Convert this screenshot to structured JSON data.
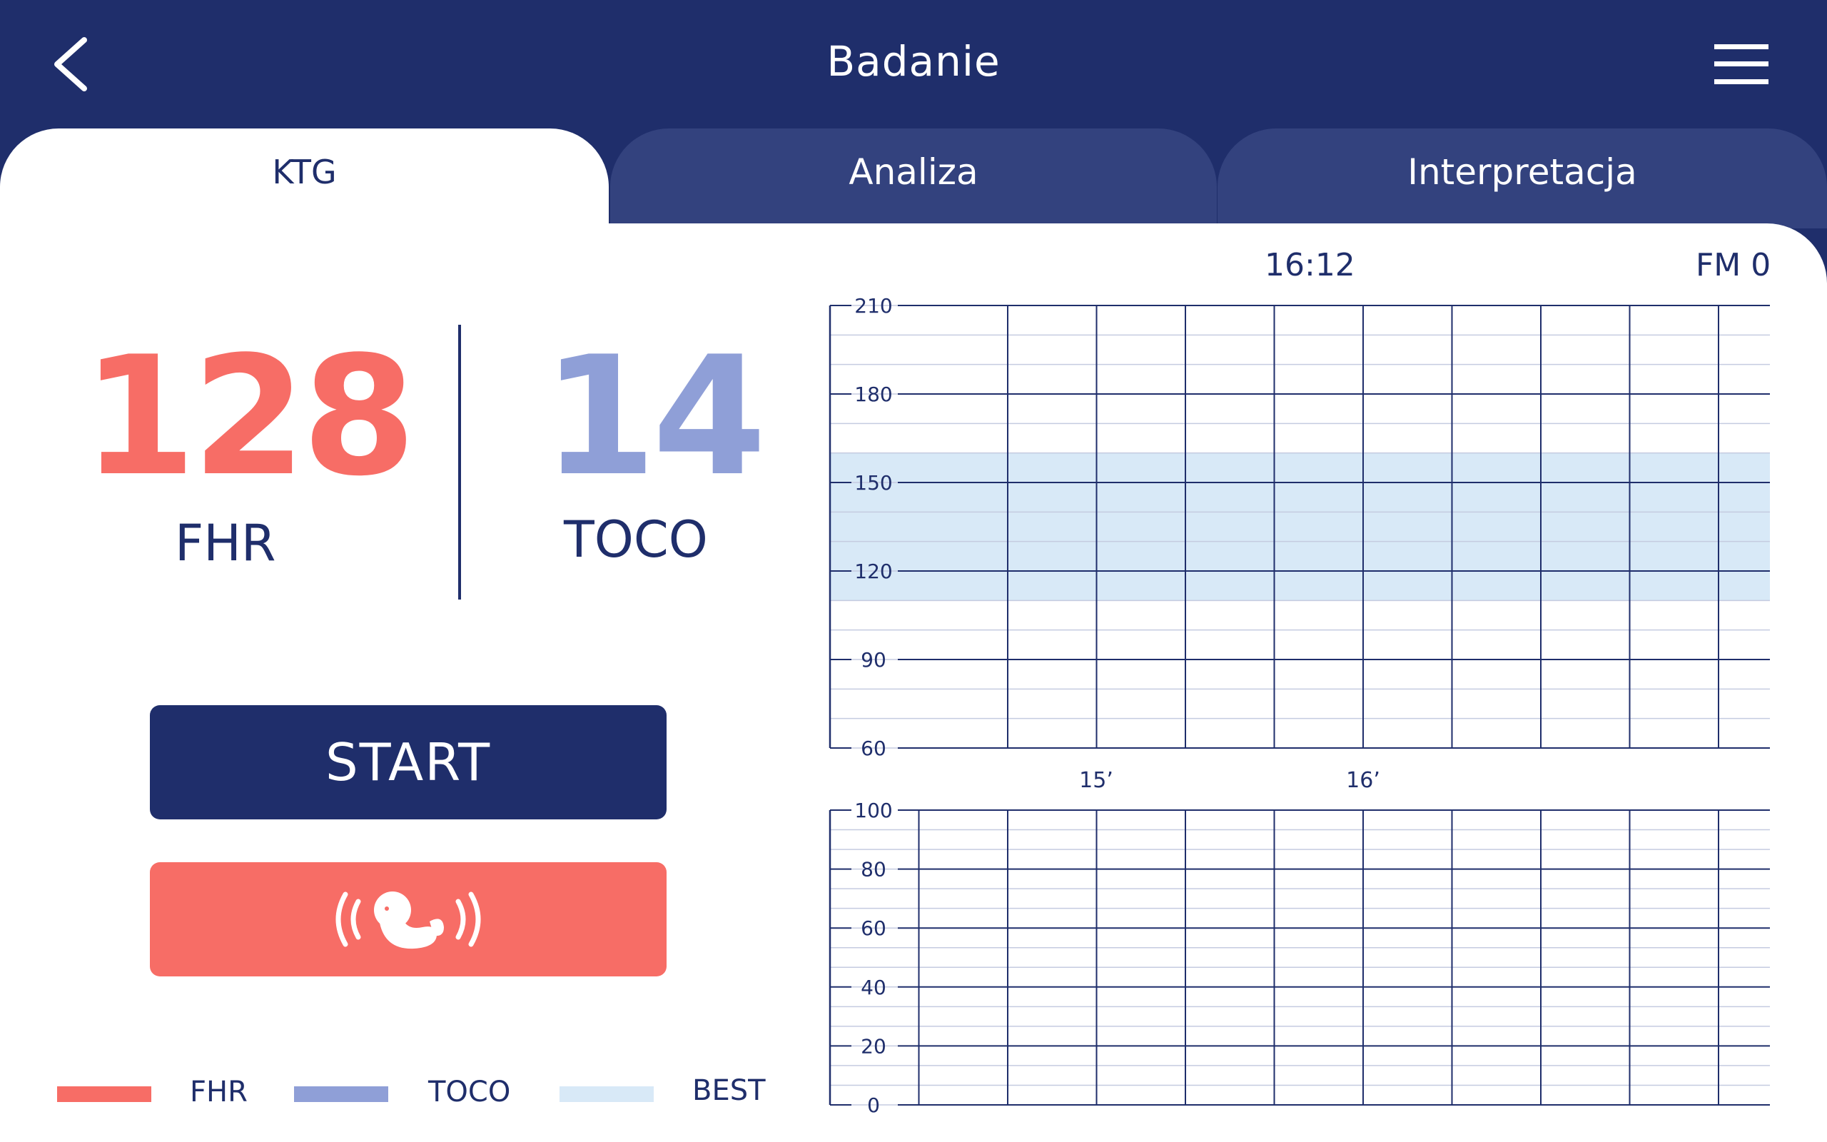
{
  "header": {
    "title": "Badanie",
    "back_icon": "chevron-left-icon",
    "menu_icon": "hamburger-menu-icon"
  },
  "tabs": [
    {
      "label": "KTG",
      "active": true
    },
    {
      "label": "Analiza",
      "active": false
    },
    {
      "label": "Interpretacja",
      "active": false
    }
  ],
  "readings": {
    "fhr_value": "128",
    "fhr_label": "FHR",
    "toco_value": "14",
    "toco_label": "TOCO"
  },
  "buttons": {
    "start_label": "START",
    "fetal_icon": "fetus-signal-icon"
  },
  "legend": [
    {
      "label": "FHR",
      "color": "#f76d66"
    },
    {
      "label": "TOCO",
      "color": "#8f9fd7"
    },
    {
      "label": "BEST",
      "color": "#d8e9f7"
    }
  ],
  "chart_info": {
    "time": "16:12",
    "fm": "FM 0"
  },
  "chart_data": [
    {
      "type": "line",
      "ylim": [
        60,
        210
      ],
      "yticks": [
        "210",
        "180",
        "150",
        "120",
        "90",
        "60"
      ],
      "band": {
        "from": 110,
        "to": 160,
        "color": "#d8e9f7"
      },
      "series": []
    },
    {
      "type": "line",
      "ylim": [
        0,
        100
      ],
      "yticks": [
        "100",
        "80",
        "60",
        "40",
        "20",
        "0"
      ],
      "x_time_labels": [
        "15’",
        "16’"
      ],
      "series": []
    }
  ],
  "colors": {
    "primary": "#1f2e6b",
    "tab_inactive": "#33427e",
    "fhr": "#f76d66",
    "toco": "#8f9fd7",
    "best_band": "#d8e9f7"
  }
}
